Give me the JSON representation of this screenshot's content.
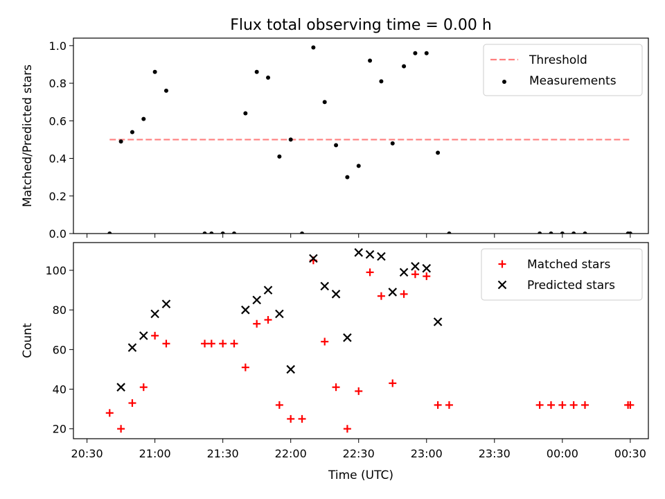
{
  "chart_data": {
    "title": "Flux total observing time = 0.00 h",
    "xlabel": "Time (UTC)",
    "x_unit": "time of day, UTC (HH:MM); values after 00:00 are on the following day",
    "xlim": [
      "20:24",
      "00:38"
    ],
    "x_ticks": [
      "20:30",
      "21:00",
      "21:30",
      "22:00",
      "22:30",
      "23:00",
      "23:30",
      "00:00",
      "00:30"
    ],
    "panels": [
      {
        "type": "scatter",
        "ylabel": "Matched/Predicted stars",
        "ylim": [
          0,
          1.04
        ],
        "y_ticks": [
          "0.0",
          "0.2",
          "0.4",
          "0.6",
          "0.8",
          "1.0"
        ],
        "legend_position": "top-right",
        "series": [
          {
            "name": "Threshold",
            "kind": "dashed-line",
            "color": "#ff7f7f",
            "points": [
              [
                "20:40",
                0.5
              ],
              [
                "00:30",
                0.5
              ]
            ]
          },
          {
            "name": "Measurements",
            "kind": "dots",
            "color": "#000000",
            "points": [
              [
                "20:40",
                0.0
              ],
              [
                "20:45",
                0.49
              ],
              [
                "20:50",
                0.54
              ],
              [
                "20:55",
                0.61
              ],
              [
                "21:00",
                0.86
              ],
              [
                "21:05",
                0.76
              ],
              [
                "21:22",
                0.0
              ],
              [
                "21:25",
                0.0
              ],
              [
                "21:30",
                0.0
              ],
              [
                "21:35",
                0.0
              ],
              [
                "21:40",
                0.64
              ],
              [
                "21:45",
                0.86
              ],
              [
                "21:50",
                0.83
              ],
              [
                "21:55",
                0.41
              ],
              [
                "22:00",
                0.5
              ],
              [
                "22:05",
                0.0
              ],
              [
                "22:10",
                0.99
              ],
              [
                "22:15",
                0.7
              ],
              [
                "22:20",
                0.47
              ],
              [
                "22:25",
                0.3
              ],
              [
                "22:30",
                0.36
              ],
              [
                "22:35",
                0.92
              ],
              [
                "22:40",
                0.81
              ],
              [
                "22:45",
                0.48
              ],
              [
                "22:50",
                0.89
              ],
              [
                "22:55",
                0.96
              ],
              [
                "23:00",
                0.96
              ],
              [
                "23:05",
                0.43
              ],
              [
                "23:10",
                0.0
              ],
              [
                "23:50",
                0.0
              ],
              [
                "23:55",
                0.0
              ],
              [
                "00:00",
                0.0
              ],
              [
                "00:05",
                0.0
              ],
              [
                "00:10",
                0.0
              ],
              [
                "00:29",
                0.0
              ],
              [
                "00:30",
                0.0
              ]
            ]
          }
        ]
      },
      {
        "type": "scatter",
        "ylabel": "Count",
        "ylim": [
          15,
          114
        ],
        "y_ticks": [
          "20",
          "40",
          "60",
          "80",
          "100"
        ],
        "legend_position": "top-right",
        "series": [
          {
            "name": "Matched stars",
            "marker": "plus",
            "color": "#ff0000",
            "points": [
              [
                "20:40",
                28
              ],
              [
                "20:45",
                20
              ],
              [
                "20:50",
                33
              ],
              [
                "20:55",
                41
              ],
              [
                "21:00",
                67
              ],
              [
                "21:05",
                63
              ],
              [
                "21:22",
                63
              ],
              [
                "21:25",
                63
              ],
              [
                "21:30",
                63
              ],
              [
                "21:35",
                63
              ],
              [
                "21:40",
                51
              ],
              [
                "21:45",
                73
              ],
              [
                "21:50",
                75
              ],
              [
                "21:55",
                32
              ],
              [
                "22:00",
                25
              ],
              [
                "22:05",
                25
              ],
              [
                "22:10",
                105
              ],
              [
                "22:15",
                64
              ],
              [
                "22:20",
                41
              ],
              [
                "22:25",
                20
              ],
              [
                "22:30",
                39
              ],
              [
                "22:35",
                99
              ],
              [
                "22:40",
                87
              ],
              [
                "22:45",
                43
              ],
              [
                "22:50",
                88
              ],
              [
                "22:55",
                98
              ],
              [
                "23:00",
                97
              ],
              [
                "23:05",
                32
              ],
              [
                "23:10",
                32
              ],
              [
                "23:50",
                32
              ],
              [
                "23:55",
                32
              ],
              [
                "00:00",
                32
              ],
              [
                "00:05",
                32
              ],
              [
                "00:10",
                32
              ],
              [
                "00:29",
                32
              ],
              [
                "00:30",
                32
              ]
            ]
          },
          {
            "name": "Predicted stars",
            "marker": "x",
            "color": "#000000",
            "points": [
              [
                "20:45",
                41
              ],
              [
                "20:50",
                61
              ],
              [
                "20:55",
                67
              ],
              [
                "21:00",
                78
              ],
              [
                "21:05",
                83
              ],
              [
                "21:40",
                80
              ],
              [
                "21:45",
                85
              ],
              [
                "21:50",
                90
              ],
              [
                "21:55",
                78
              ],
              [
                "22:00",
                50
              ],
              [
                "22:10",
                106
              ],
              [
                "22:15",
                92
              ],
              [
                "22:20",
                88
              ],
              [
                "22:25",
                66
              ],
              [
                "22:30",
                109
              ],
              [
                "22:35",
                108
              ],
              [
                "22:40",
                107
              ],
              [
                "22:45",
                89
              ],
              [
                "22:50",
                99
              ],
              [
                "22:55",
                102
              ],
              [
                "23:00",
                101
              ],
              [
                "23:05",
                74
              ]
            ]
          }
        ]
      }
    ]
  }
}
